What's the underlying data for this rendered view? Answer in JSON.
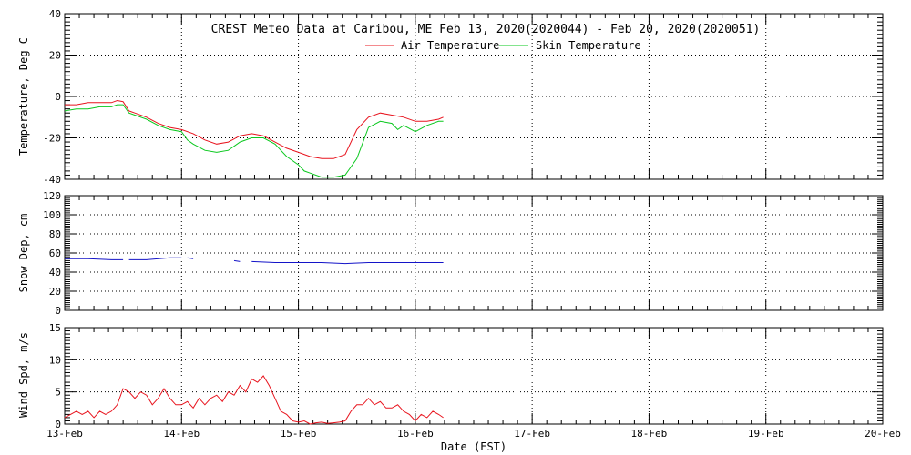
{
  "title": "CREST Meteo Data at Caribou, ME   Feb 13, 2020(2020044) - Feb 20, 2020(2020051)",
  "xlabel": "Date (EST)",
  "colors": {
    "air": "#e8141e",
    "skin": "#0ac81e",
    "snow": "#1414c8",
    "wind": "#e8141e",
    "axis": "#000000"
  },
  "chart_data": [
    {
      "type": "line",
      "ylabel": "Temperature, Deg C",
      "ylim": [
        -40,
        40
      ],
      "yticks": [
        -40,
        -20,
        0,
        20,
        40
      ],
      "xlim": [
        0,
        7
      ],
      "xticks": [
        0,
        1,
        2,
        3,
        4,
        5,
        6,
        7
      ],
      "xticklabels": [
        "13-Feb",
        "14-Feb",
        "15-Feb",
        "16-Feb",
        "17-Feb",
        "18-Feb",
        "19-Feb",
        "20-Feb"
      ],
      "grid": true,
      "legend": "top-center",
      "series": [
        {
          "name": "Air Temperature",
          "x": [
            0,
            0.1,
            0.2,
            0.3,
            0.4,
            0.45,
            0.5,
            0.55,
            0.6,
            0.7,
            0.8,
            0.9,
            1.0,
            1.1,
            1.2,
            1.3,
            1.4,
            1.5,
            1.6,
            1.7,
            1.8,
            1.9,
            2.0,
            2.1,
            2.2,
            2.3,
            2.4,
            2.5,
            2.6,
            2.7,
            2.8,
            2.9,
            3.0,
            3.1,
            3.2,
            3.24
          ],
          "values": [
            -4,
            -4,
            -3,
            -3,
            -3,
            -2,
            -2.5,
            -7,
            -8,
            -10,
            -13,
            -15,
            -16,
            -18,
            -21,
            -23,
            -22,
            -19,
            -18,
            -19,
            -22,
            -25,
            -27,
            -29,
            -30,
            -30,
            -28,
            -16,
            -10,
            -8,
            -9,
            -10,
            -12,
            -12,
            -11,
            -10
          ]
        },
        {
          "name": "Skin Temperature",
          "x": [
            0,
            0.1,
            0.2,
            0.3,
            0.4,
            0.45,
            0.5,
            0.55,
            0.6,
            0.7,
            0.8,
            0.9,
            1.0,
            1.05,
            1.1,
            1.2,
            1.3,
            1.4,
            1.5,
            1.6,
            1.7,
            1.8,
            1.85,
            1.9,
            2.0,
            2.05,
            2.1,
            2.2,
            2.3,
            2.4,
            2.5,
            2.6,
            2.7,
            2.8,
            2.85,
            2.9,
            3.0,
            3.1,
            3.2,
            3.24
          ],
          "values": [
            -7,
            -6,
            -6,
            -5,
            -5,
            -4,
            -4,
            -8,
            -9,
            -11,
            -14,
            -16,
            -17,
            -21,
            -23,
            -26,
            -27,
            -26,
            -22,
            -20,
            -20,
            -23,
            -26,
            -29,
            -33,
            -36,
            -37,
            -39,
            -39,
            -38,
            -30,
            -15,
            -12,
            -13,
            -16,
            -14,
            -17,
            -14,
            -12,
            -12
          ]
        }
      ]
    },
    {
      "type": "line",
      "ylabel": "Snow Dep, cm",
      "ylim": [
        0,
        120
      ],
      "yticks": [
        0,
        20,
        40,
        60,
        80,
        100,
        120
      ],
      "xlim": [
        0,
        7
      ],
      "xticks": [
        0,
        1,
        2,
        3,
        4,
        5,
        6,
        7
      ],
      "grid": true,
      "series": [
        {
          "segments": [
            {
              "x": [
                0,
                0.2,
                0.4,
                0.5
              ],
              "values": [
                54,
                54,
                53,
                53
              ]
            },
            {
              "x": [
                0.55,
                0.7,
                0.9,
                1.0
              ],
              "values": [
                53,
                53,
                55,
                55
              ]
            },
            {
              "x": [
                1.05,
                1.1
              ],
              "values": [
                55,
                54
              ]
            },
            {
              "x": [
                1.45,
                1.5
              ],
              "values": [
                52,
                51
              ]
            },
            {
              "x": [
                1.6,
                1.8,
                2.0,
                2.2,
                2.4,
                2.6,
                2.8,
                3.0,
                3.24
              ],
              "values": [
                51,
                50,
                50,
                50,
                49,
                50,
                50,
                50,
                50
              ]
            }
          ]
        }
      ]
    },
    {
      "type": "line",
      "ylabel": "Wind Spd, m/s",
      "ylim": [
        0,
        15
      ],
      "yticks": [
        0,
        5,
        10,
        15
      ],
      "xlim": [
        0,
        7
      ],
      "xticks": [
        0,
        1,
        2,
        3,
        4,
        5,
        6,
        7
      ],
      "grid": true,
      "series": [
        {
          "x": [
            0,
            0.05,
            0.1,
            0.15,
            0.2,
            0.25,
            0.3,
            0.35,
            0.4,
            0.45,
            0.5,
            0.55,
            0.6,
            0.65,
            0.7,
            0.75,
            0.8,
            0.85,
            0.9,
            0.95,
            1.0,
            1.05,
            1.1,
            1.15,
            1.2,
            1.25,
            1.3,
            1.35,
            1.4,
            1.45,
            1.5,
            1.55,
            1.6,
            1.65,
            1.7,
            1.75,
            1.8,
            1.85,
            1.9,
            1.95,
            2.0,
            2.05,
            2.1,
            2.15,
            2.2,
            2.25,
            2.3,
            2.35,
            2.4,
            2.45,
            2.5,
            2.55,
            2.6,
            2.65,
            2.7,
            2.75,
            2.8,
            2.85,
            2.9,
            2.95,
            3.0,
            3.05,
            3.1,
            3.15,
            3.2,
            3.24
          ],
          "values": [
            1,
            1.5,
            2,
            1.5,
            2,
            1,
            2,
            1.5,
            2,
            3,
            5.5,
            5,
            4,
            5,
            4.5,
            3,
            4,
            5.5,
            4,
            3,
            3,
            3.5,
            2.5,
            4,
            3,
            4,
            4.5,
            3.5,
            5,
            4.5,
            6,
            5,
            7,
            6.5,
            7.5,
            6,
            4,
            2,
            1.5,
            0.5,
            0.3,
            0.5,
            0,
            0.2,
            0.3,
            0.1,
            0.2,
            0.3,
            0.5,
            2,
            3,
            3,
            4,
            3,
            3.5,
            2.5,
            2.5,
            3,
            2,
            1.5,
            0.5,
            1.5,
            1,
            2,
            1.5,
            1
          ]
        }
      ]
    }
  ]
}
